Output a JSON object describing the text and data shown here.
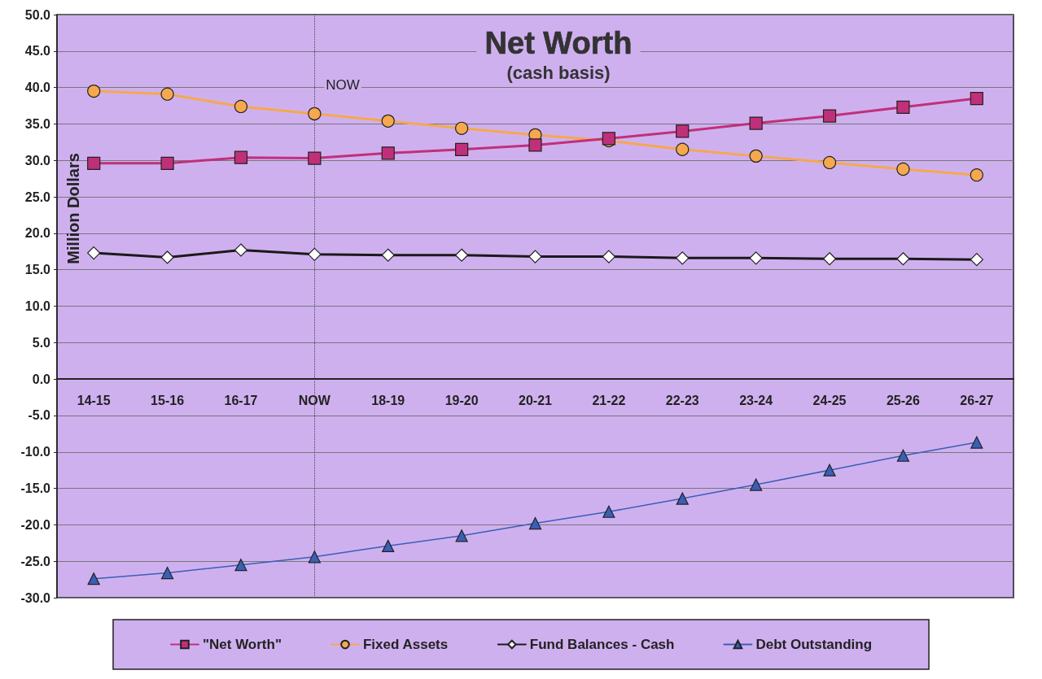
{
  "chart_data": {
    "type": "line",
    "title": "Net Worth",
    "subtitle": "(cash basis)",
    "ylabel": "Million Dollars",
    "categories": [
      "14-15",
      "15-16",
      "16-17",
      "NOW",
      "18-19",
      "19-20",
      "20-21",
      "21-22",
      "22-23",
      "23-24",
      "24-25",
      "25-26",
      "26-27"
    ],
    "series": [
      {
        "name": "\"Net Worth\"",
        "color": "#c0307a",
        "marker": "square",
        "values": [
          29.6,
          29.6,
          30.4,
          30.3,
          31.0,
          31.5,
          32.1,
          33.0,
          34.0,
          35.1,
          36.1,
          37.3,
          38.5
        ]
      },
      {
        "name": "Fixed Assets",
        "color": "#f5a84e",
        "marker": "circle",
        "values": [
          39.5,
          39.1,
          37.4,
          36.4,
          35.4,
          34.4,
          33.5,
          32.7,
          31.5,
          30.6,
          29.7,
          28.8,
          28.0
        ]
      },
      {
        "name": "Fund Balances - Cash",
        "color": "#1a1a1a",
        "marker": "diamond",
        "values": [
          17.3,
          16.7,
          17.7,
          17.1,
          17.0,
          17.0,
          16.8,
          16.8,
          16.6,
          16.6,
          16.5,
          16.5,
          16.4
        ]
      },
      {
        "name": "Debt Outstanding",
        "color": "#3a5fb5",
        "marker": "triangle",
        "values": [
          -27.4,
          -26.6,
          -25.5,
          -24.4,
          -22.9,
          -21.5,
          -19.8,
          -18.2,
          -16.4,
          -14.5,
          -12.5,
          -10.5,
          -8.7
        ]
      }
    ],
    "ylim": [
      -30,
      50
    ],
    "yticks": [
      {
        "value": -30,
        "label": "-30.0"
      },
      {
        "value": -25,
        "label": "-25.0"
      },
      {
        "value": -20,
        "label": "-20.0"
      },
      {
        "value": -15,
        "label": "-15.0"
      },
      {
        "value": -10,
        "label": "-10.0"
      },
      {
        "value": -5,
        "label": "-5.0"
      },
      {
        "value": 0,
        "label": "0.0"
      },
      {
        "value": 5,
        "label": "5.0"
      },
      {
        "value": 10,
        "label": "10.0"
      },
      {
        "value": 15,
        "label": "15.0"
      },
      {
        "value": 20,
        "label": "20.0"
      },
      {
        "value": 25,
        "label": "25.0"
      },
      {
        "value": 30,
        "label": "30.0"
      },
      {
        "value": 35,
        "label": "35.0"
      },
      {
        "value": 40,
        "label": "40.0"
      },
      {
        "value": 45,
        "label": "45.0"
      },
      {
        "value": 50,
        "label": "50.0"
      }
    ],
    "ref_lines": [
      {
        "axis": "x",
        "value": "NOW",
        "label": "NOW",
        "color": "#444444",
        "line_style": "dotted"
      }
    ],
    "grid": "y",
    "legend": "bottom"
  }
}
